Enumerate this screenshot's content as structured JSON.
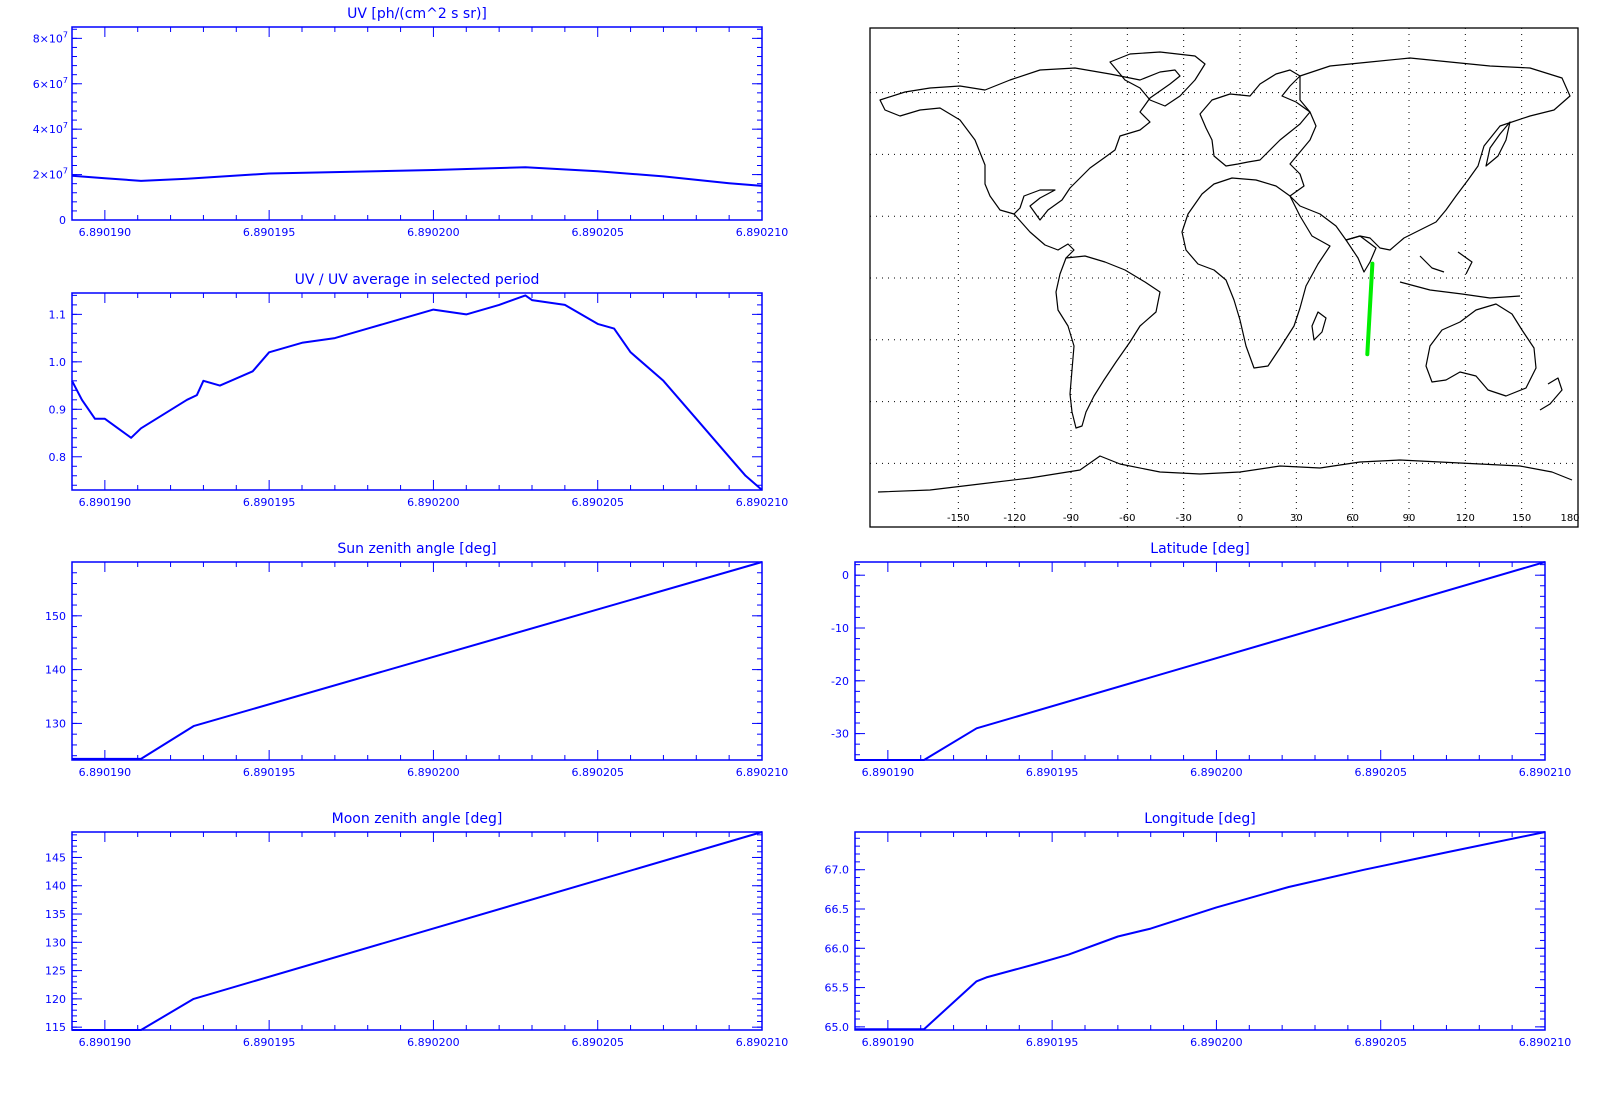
{
  "colors": {
    "axis": "#0000ff",
    "line": "#0000ff",
    "map_frame": "#000000",
    "coast": "#000000",
    "track": "#00ee00",
    "background": "#ffffff"
  },
  "chart_data": [
    {
      "id": "uv",
      "type": "line",
      "title": "UV [ph/(cm^2 s sr)]",
      "xlim": [
        6.890189,
        6.89021
      ],
      "xticks": [
        "6.890190",
        "6.890195",
        "6.890200",
        "6.890205",
        "6.890210"
      ],
      "ylim": [
        0,
        85000000
      ],
      "yticks": [
        {
          "value": 0,
          "label": "0"
        },
        {
          "value": 20000000,
          "label": "2×10",
          "sup": "7"
        },
        {
          "value": 40000000,
          "label": "4×10",
          "sup": "7"
        },
        {
          "value": 60000000,
          "label": "6×10",
          "sup": "7"
        },
        {
          "value": 80000000,
          "label": "8×10",
          "sup": "7"
        }
      ],
      "series": [
        {
          "x": [
            6.890189,
            6.89019,
            6.8901911,
            6.8901925,
            6.890195,
            6.8902,
            6.8902028,
            6.890205,
            6.890207,
            6.890209,
            6.89021
          ],
          "y": [
            19500000,
            18400000,
            17200000,
            18200000,
            20500000,
            22000000,
            23200000,
            21500000,
            19200000,
            16200000,
            15000000
          ]
        }
      ]
    },
    {
      "id": "uv_ratio",
      "type": "line",
      "title": "UV / UV average in selected period",
      "xlim": [
        6.890189,
        6.89021
      ],
      "xticks": [
        "6.890190",
        "6.890195",
        "6.890200",
        "6.890205",
        "6.890210"
      ],
      "ylim": [
        0.73,
        1.145
      ],
      "yticks": [
        {
          "value": 0.8,
          "label": "0.8"
        },
        {
          "value": 0.9,
          "label": "0.9"
        },
        {
          "value": 1.0,
          "label": "1.0"
        },
        {
          "value": 1.1,
          "label": "1.1"
        }
      ],
      "series": [
        {
          "x": [
            6.890189,
            6.8901893,
            6.8901897,
            6.89019,
            6.8901904,
            6.8901908,
            6.8901911,
            6.8901925,
            6.8901928,
            6.890193,
            6.8901935,
            6.8901945,
            6.890195,
            6.890196,
            6.890197,
            6.890198,
            6.890199,
            6.8902,
            6.890201,
            6.890202,
            6.8902028,
            6.890203,
            6.890204,
            6.890205,
            6.8902055,
            6.890206,
            6.890207,
            6.890208,
            6.890209,
            6.8902095,
            6.89021
          ],
          "y": [
            0.96,
            0.92,
            0.88,
            0.88,
            0.86,
            0.84,
            0.86,
            0.92,
            0.93,
            0.96,
            0.95,
            0.98,
            1.02,
            1.04,
            1.05,
            1.07,
            1.09,
            1.11,
            1.1,
            1.12,
            1.14,
            1.13,
            1.12,
            1.08,
            1.07,
            1.02,
            0.96,
            0.88,
            0.8,
            0.76,
            0.73
          ]
        }
      ]
    },
    {
      "id": "sun_zenith",
      "type": "line",
      "title": "Sun zenith angle [deg]",
      "xlim": [
        6.890189,
        6.89021
      ],
      "xticks": [
        "6.890190",
        "6.890195",
        "6.890200",
        "6.890205",
        "6.890210"
      ],
      "ylim": [
        123.2,
        160
      ],
      "yticks": [
        {
          "value": 130,
          "label": "130"
        },
        {
          "value": 140,
          "label": "140"
        },
        {
          "value": 150,
          "label": "150"
        }
      ],
      "series": [
        {
          "x": [
            6.890189,
            6.8901911,
            6.8901927,
            6.89021
          ],
          "y": [
            123.4,
            123.4,
            129.5,
            160
          ]
        }
      ]
    },
    {
      "id": "latitude",
      "type": "line",
      "title": "Latitude [deg]",
      "xlim": [
        6.890189,
        6.89021
      ],
      "xticks": [
        "6.890190",
        "6.890195",
        "6.890200",
        "6.890205",
        "6.890210"
      ],
      "ylim": [
        -35,
        2.5
      ],
      "yticks": [
        {
          "value": -30,
          "label": "-30"
        },
        {
          "value": -20,
          "label": "-20"
        },
        {
          "value": -10,
          "label": "-10"
        },
        {
          "value": 0,
          "label": "0"
        }
      ],
      "series": [
        {
          "x": [
            6.890189,
            6.8901911,
            6.8901927,
            6.89021
          ],
          "y": [
            -35,
            -35,
            -29,
            2.5
          ]
        }
      ]
    },
    {
      "id": "moon_zenith",
      "type": "line",
      "title": "Moon zenith angle [deg]",
      "xlim": [
        6.890189,
        6.89021
      ],
      "xticks": [
        "6.890190",
        "6.890195",
        "6.890200",
        "6.890205",
        "6.890210"
      ],
      "ylim": [
        114.5,
        149.5
      ],
      "yticks": [
        {
          "value": 115,
          "label": "115"
        },
        {
          "value": 120,
          "label": "120"
        },
        {
          "value": 125,
          "label": "125"
        },
        {
          "value": 130,
          "label": "130"
        },
        {
          "value": 135,
          "label": "135"
        },
        {
          "value": 140,
          "label": "140"
        },
        {
          "value": 145,
          "label": "145"
        }
      ],
      "series": [
        {
          "x": [
            6.890189,
            6.8901911,
            6.8901927,
            6.89021
          ],
          "y": [
            114.5,
            114.5,
            120,
            149.5
          ]
        }
      ]
    },
    {
      "id": "longitude",
      "type": "line",
      "title": "Longitude [deg]",
      "xlim": [
        6.890189,
        6.89021
      ],
      "xticks": [
        "6.890190",
        "6.890195",
        "6.890200",
        "6.890205",
        "6.890210"
      ],
      "ylim": [
        64.96,
        67.48
      ],
      "yticks": [
        {
          "value": 65.0,
          "label": "65.0"
        },
        {
          "value": 65.5,
          "label": "65.5"
        },
        {
          "value": 66.0,
          "label": "66.0"
        },
        {
          "value": 66.5,
          "label": "66.5"
        },
        {
          "value": 67.0,
          "label": "67.0"
        }
      ],
      "series": [
        {
          "x": [
            6.890189,
            6.8901911,
            6.8901927,
            6.890193,
            6.8901945,
            6.8901955,
            6.890197,
            6.890198,
            6.8902,
            6.8902022,
            6.8902045,
            6.890207,
            6.89021
          ],
          "y": [
            64.97,
            64.97,
            65.58,
            65.63,
            65.8,
            65.92,
            66.15,
            66.25,
            66.52,
            66.78,
            67.0,
            67.22,
            67.48
          ]
        }
      ]
    },
    {
      "id": "map",
      "type": "map",
      "xticks": [
        "-150",
        "-120",
        "-90",
        "-60",
        "-30",
        "0",
        "30",
        "60",
        "90",
        "120",
        "150",
        "180"
      ],
      "track": {
        "lon": [
          70.5,
          67.8
        ],
        "lat": [
          7,
          -37
        ]
      }
    }
  ]
}
